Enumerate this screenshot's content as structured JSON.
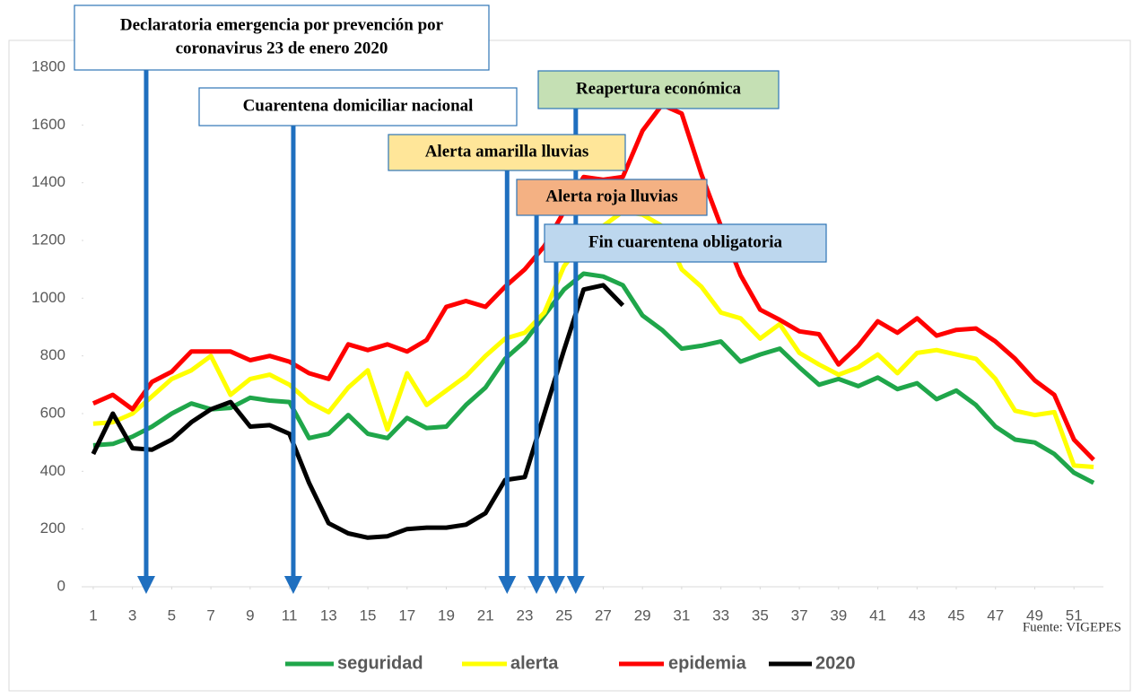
{
  "chart_data": {
    "type": "line",
    "x": [
      1,
      2,
      3,
      4,
      5,
      6,
      7,
      8,
      9,
      10,
      11,
      12,
      13,
      14,
      15,
      16,
      17,
      18,
      19,
      20,
      21,
      22,
      23,
      24,
      25,
      26,
      27,
      28,
      29,
      30,
      31,
      32,
      33,
      34,
      35,
      36,
      37,
      38,
      39,
      40,
      41,
      42,
      43,
      44,
      45,
      46,
      47,
      48,
      49,
      50,
      51,
      52
    ],
    "xlim": [
      0.5,
      52.5
    ],
    "xticks": [
      1,
      3,
      5,
      7,
      9,
      11,
      13,
      15,
      17,
      19,
      21,
      23,
      25,
      27,
      29,
      31,
      33,
      35,
      37,
      39,
      41,
      43,
      45,
      47,
      49,
      51
    ],
    "ylim": [
      0,
      1800
    ],
    "yticks": [
      0,
      200,
      400,
      600,
      800,
      1000,
      1200,
      1400,
      1600,
      1800
    ],
    "series": [
      {
        "name": "seguridad",
        "color": "#1fa64a",
        "values": [
          490,
          495,
          520,
          555,
          600,
          635,
          615,
          620,
          655,
          645,
          640,
          515,
          530,
          595,
          530,
          515,
          585,
          550,
          555,
          630,
          690,
          790,
          850,
          940,
          1030,
          1085,
          1075,
          1045,
          940,
          890,
          825,
          835,
          850,
          780,
          805,
          825,
          760,
          700,
          720,
          695,
          725,
          685,
          705,
          650,
          680,
          630,
          555,
          510,
          500,
          460,
          395,
          360
        ]
      },
      {
        "name": "alerta",
        "color": "#ffff00",
        "values": [
          565,
          570,
          600,
          660,
          720,
          750,
          800,
          665,
          720,
          735,
          700,
          640,
          605,
          690,
          750,
          545,
          740,
          630,
          680,
          730,
          800,
          860,
          880,
          950,
          1110,
          1200,
          1250,
          1300,
          1290,
          1250,
          1100,
          1040,
          950,
          930,
          860,
          910,
          810,
          770,
          735,
          760,
          805,
          740,
          810,
          820,
          805,
          790,
          720,
          610,
          595,
          605,
          420,
          415
        ]
      },
      {
        "name": "epidemia",
        "color": "#ff0000",
        "values": [
          635,
          665,
          615,
          710,
          745,
          815,
          815,
          815,
          785,
          800,
          780,
          740,
          720,
          840,
          820,
          840,
          815,
          855,
          970,
          990,
          970,
          1040,
          1100,
          1180,
          1300,
          1420,
          1410,
          1420,
          1580,
          1670,
          1640,
          1430,
          1250,
          1080,
          960,
          925,
          885,
          875,
          770,
          835,
          920,
          880,
          930,
          870,
          890,
          895,
          850,
          790,
          715,
          665,
          510,
          440
        ]
      },
      {
        "name": "2020",
        "color": "#000000",
        "values": [
          460,
          600,
          480,
          475,
          510,
          570,
          615,
          640,
          555,
          560,
          530,
          360,
          220,
          185,
          170,
          175,
          200,
          205,
          205,
          215,
          255,
          370,
          380,
          600,
          820,
          1030,
          1045,
          975,
          null,
          null,
          null,
          null,
          null,
          null,
          null,
          null,
          null,
          null,
          null,
          null,
          null,
          null,
          null,
          null,
          null,
          null,
          null,
          null,
          null,
          null,
          null,
          null
        ]
      }
    ],
    "annotations": [
      {
        "text": [
          "Declaratoria emergencia por prevención por",
          "coronavirus 23 de enero 2020"
        ],
        "x": 3.7,
        "fill": "#ffffff"
      },
      {
        "text": [
          "Cuarentena domiciliar nacional"
        ],
        "x": 11.2,
        "fill": "#ffffff"
      },
      {
        "text": [
          "Alerta amarilla lluvias"
        ],
        "x": 22.1,
        "fill": "#ffe699"
      },
      {
        "text": [
          "Alerta roja lluvias"
        ],
        "x": 23.6,
        "fill": "#f4b183"
      },
      {
        "text": [
          "Fin cuarentena obligatoria"
        ],
        "x": 24.6,
        "fill": "#bdd7ee"
      },
      {
        "text": [
          "Reapertura económica"
        ],
        "x": 25.6,
        "fill": "#c5e0b4"
      }
    ],
    "arrow_color": "#1f6fbf",
    "source": "Fuente: VIGEPES"
  }
}
